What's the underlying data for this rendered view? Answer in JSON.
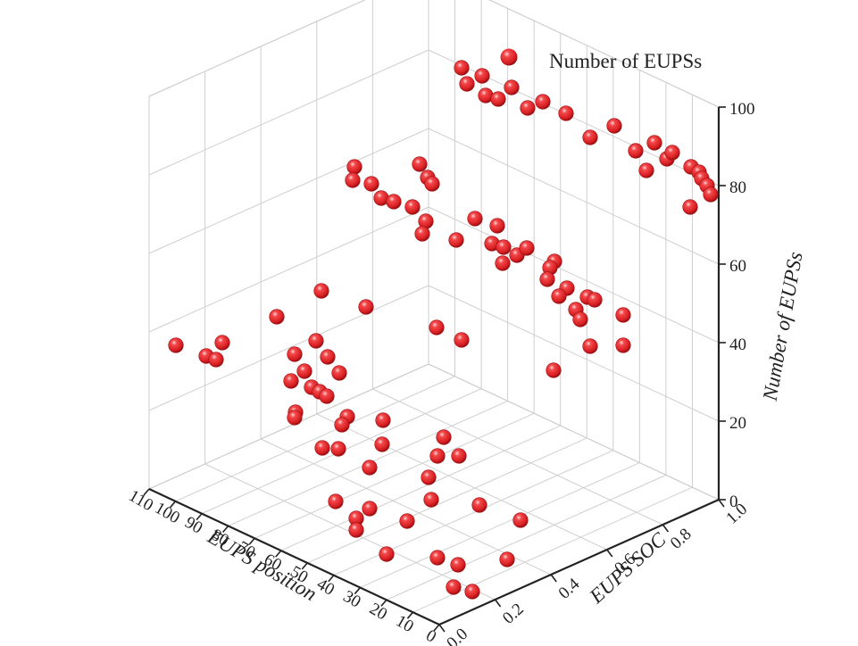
{
  "chart_data": {
    "type": "scatter",
    "subtype": "3d-scatter",
    "legend": {
      "label": "Number of EUPSs",
      "position": "top-right"
    },
    "axes": {
      "x": {
        "label": "EUPS position",
        "ticks": [
          "0",
          "10",
          "20",
          "30",
          "40",
          "50",
          "60",
          "70",
          "80",
          "90",
          "100",
          "110"
        ],
        "range": [
          0,
          110
        ]
      },
      "y": {
        "label": "EUPS SOC",
        "ticks": [
          "0.0",
          "0.2",
          "0.4",
          "0.6",
          "0.8",
          "1.0"
        ],
        "range": [
          0.0,
          1.0
        ]
      },
      "z": {
        "label": "Number of EUPSs",
        "ticks": [
          "0",
          "20",
          "40",
          "60",
          "80",
          "100"
        ],
        "range": [
          0,
          100
        ]
      }
    },
    "grid": true,
    "marker_color": "#e8262a"
  }
}
